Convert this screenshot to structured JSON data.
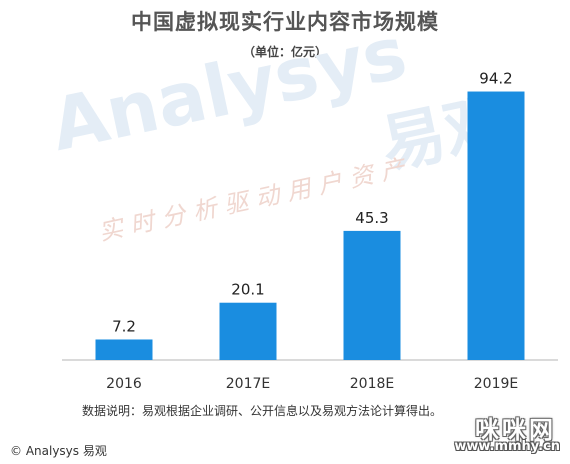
{
  "chart_data": {
    "type": "bar",
    "title": "中国虚拟现实行业内容市场规模",
    "subtitle": "（单位：亿元）",
    "categories": [
      "2016",
      "2017E",
      "2018E",
      "2019E"
    ],
    "values": [
      7.2,
      20.1,
      45.3,
      94.2
    ],
    "ylim": [
      0,
      100
    ],
    "grid": false,
    "bar_color": "#1a8de0",
    "axis_color": "#b5b5b5"
  },
  "note": "数据说明：易观根据企业调研、公开信息以及易观方法论计算得出。",
  "copyright": "© Analysys 易观",
  "watermark": {
    "en": "Analysys",
    "cn": "易观",
    "slogan": "实时分析驱动用户资产"
  },
  "site_logo": {
    "cn": "咪咪网",
    "en": "www.mmhy.cn"
  }
}
